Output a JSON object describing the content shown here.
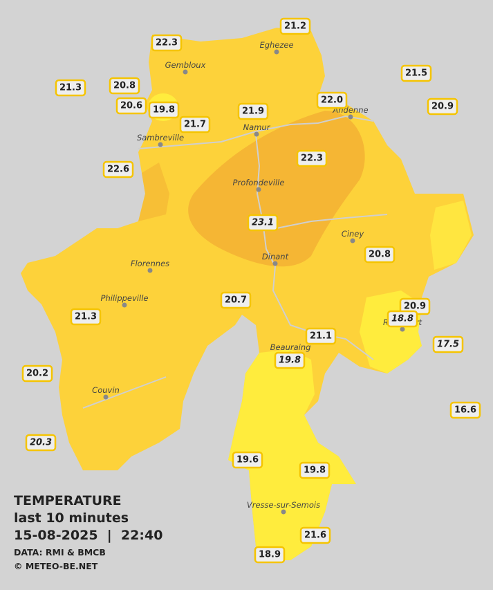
{
  "header": {
    "title": "TEMPERATURE",
    "subtitle": "last 10 minutes",
    "datetime": "15-08-2025  |  22:40",
    "source": "DATA: RMI & BMCB",
    "copyright": "© METEO-BE.NET"
  },
  "towns": [
    "Eghezee",
    "Gembloux",
    "Andenne",
    "Namur",
    "Sambreville",
    "Profondeville",
    "Ciney",
    "Dinant",
    "Florennes",
    "Philippeville",
    "Rochefort",
    "Beauraing",
    "Couvin",
    "Vresse-sur-Semois"
  ],
  "stations": [
    "21.2",
    "22.3",
    "21.5",
    "21.3",
    "20.8",
    "22.0",
    "20.9",
    "20.6",
    "19.8",
    "21.9",
    "21.7",
    "22.3",
    "22.6",
    "23.1",
    "20.8",
    "20.7",
    "20.9",
    "18.8",
    "21.3",
    "21.1",
    "17.5",
    "19.8",
    "20.2",
    "16.6",
    "20.3",
    "19.6",
    "19.8",
    "21.6",
    "18.9"
  ]
}
